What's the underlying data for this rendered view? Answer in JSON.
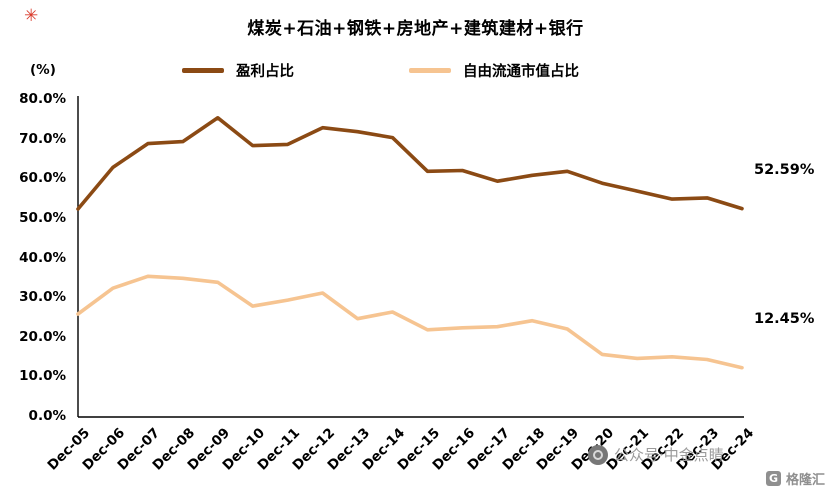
{
  "title": "煤炭+石油+钢铁+房地产+建筑建材+银行",
  "y_unit_label": "(%)",
  "decorations": {
    "top_left_mark": "✳"
  },
  "legend": [
    {
      "label": "盈利占比",
      "color": "#8B4A14"
    },
    {
      "label": "自由流通市值占比",
      "color": "#F6C491"
    }
  ],
  "annotations": [
    {
      "text": "52.59%",
      "series": "盈利占比",
      "value": 52.59
    },
    {
      "text": "12.45%",
      "series": "自由流通市值占比",
      "value": 12.45
    }
  ],
  "watermarks": {
    "center_text": "公众号·中金点睛",
    "corner_icon_letter": "G",
    "corner_text": "格隆汇"
  },
  "chart_data": {
    "type": "line",
    "title": "煤炭+石油+钢铁+房地产+建筑建材+银行",
    "xlabel": "",
    "ylabel": "(%)",
    "ylim": [
      0,
      80
    ],
    "y_ticks": [
      0,
      10,
      20,
      30,
      40,
      50,
      60,
      70,
      80
    ],
    "y_tick_labels": [
      "0.0%",
      "10.0%",
      "20.0%",
      "30.0%",
      "40.0%",
      "50.0%",
      "60.0%",
      "70.0%",
      "80.0%"
    ],
    "grid": false,
    "legend_position": "top",
    "categories": [
      "Dec-05",
      "Dec-06",
      "Dec-07",
      "Dec-08",
      "Dec-09",
      "Dec-10",
      "Dec-11",
      "Dec-12",
      "Dec-13",
      "Dec-14",
      "Dec-15",
      "Dec-16",
      "Dec-17",
      "Dec-18",
      "Dec-19",
      "Dec-20",
      "Dec-21",
      "Dec-22",
      "Dec-23",
      "Dec-24"
    ],
    "series": [
      {
        "name": "盈利占比",
        "color": "#8B4A14",
        "values": [
          52.5,
          63.0,
          69.0,
          69.5,
          75.5,
          68.5,
          68.8,
          73.0,
          72.0,
          70.5,
          62.0,
          62.2,
          59.5,
          61.0,
          62.0,
          59.0,
          57.0,
          55.0,
          55.3,
          52.59
        ]
      },
      {
        "name": "自由流通市值占比",
        "color": "#F6C491",
        "values": [
          26.0,
          32.5,
          35.5,
          35.0,
          34.0,
          28.0,
          29.5,
          31.3,
          24.8,
          26.5,
          22.0,
          22.5,
          22.8,
          24.3,
          22.2,
          15.8,
          14.8,
          15.2,
          14.5,
          12.45
        ]
      }
    ]
  }
}
